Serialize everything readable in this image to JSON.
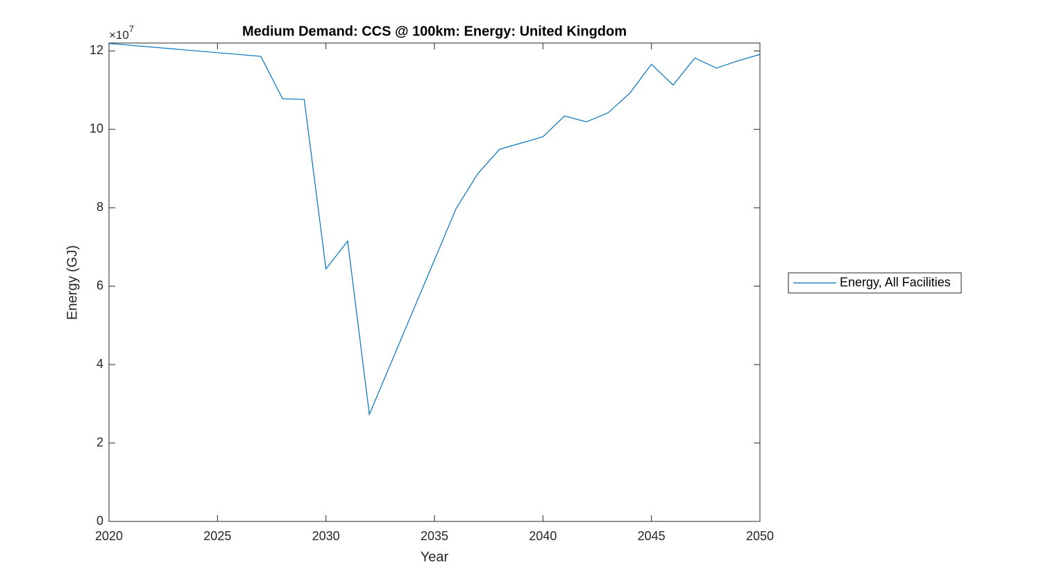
{
  "chart_data": {
    "type": "line",
    "title": "Medium Demand: CCS @ 100km: Energy: United Kingdom",
    "x_label": "Year",
    "y_label": "Energy (GJ)",
    "y_multiplier_base": "×10",
    "y_multiplier_exponent": "7",
    "x": [
      2020,
      2027,
      2028,
      2029,
      2030,
      2031,
      2032,
      2036,
      2037,
      2038,
      2039,
      2040,
      2041,
      2042,
      2043,
      2044,
      2045,
      2046,
      2047,
      2048,
      2049,
      2050
    ],
    "series": [
      {
        "name": "Energy, All Facilities",
        "color": "#0072bd",
        "values": [
          121900000,
          118600000,
          107800000,
          107600000,
          64400000,
          71500000,
          27300000,
          79800000,
          88700000,
          94900000,
          96500000,
          98100000,
          103400000,
          101900000,
          104200000,
          109200000,
          116600000,
          111300000,
          118200000,
          115600000,
          117500000,
          119100000
        ]
      }
    ],
    "xlim": [
      2020,
      2050
    ],
    "xticks": [
      2020,
      2025,
      2030,
      2035,
      2040,
      2045,
      2050
    ],
    "ylim": [
      0,
      122000000
    ],
    "yticks": [
      0,
      {
        "value": 20000000,
        "label": "2"
      },
      {
        "value": 40000000,
        "label": "4"
      },
      {
        "value": 60000000,
        "label": "6"
      },
      {
        "value": 80000000,
        "label": "8"
      },
      {
        "value": 100000000,
        "label": "10"
      },
      {
        "value": 120000000,
        "label": "12"
      }
    ],
    "grid": false,
    "legend": "outside-right"
  }
}
